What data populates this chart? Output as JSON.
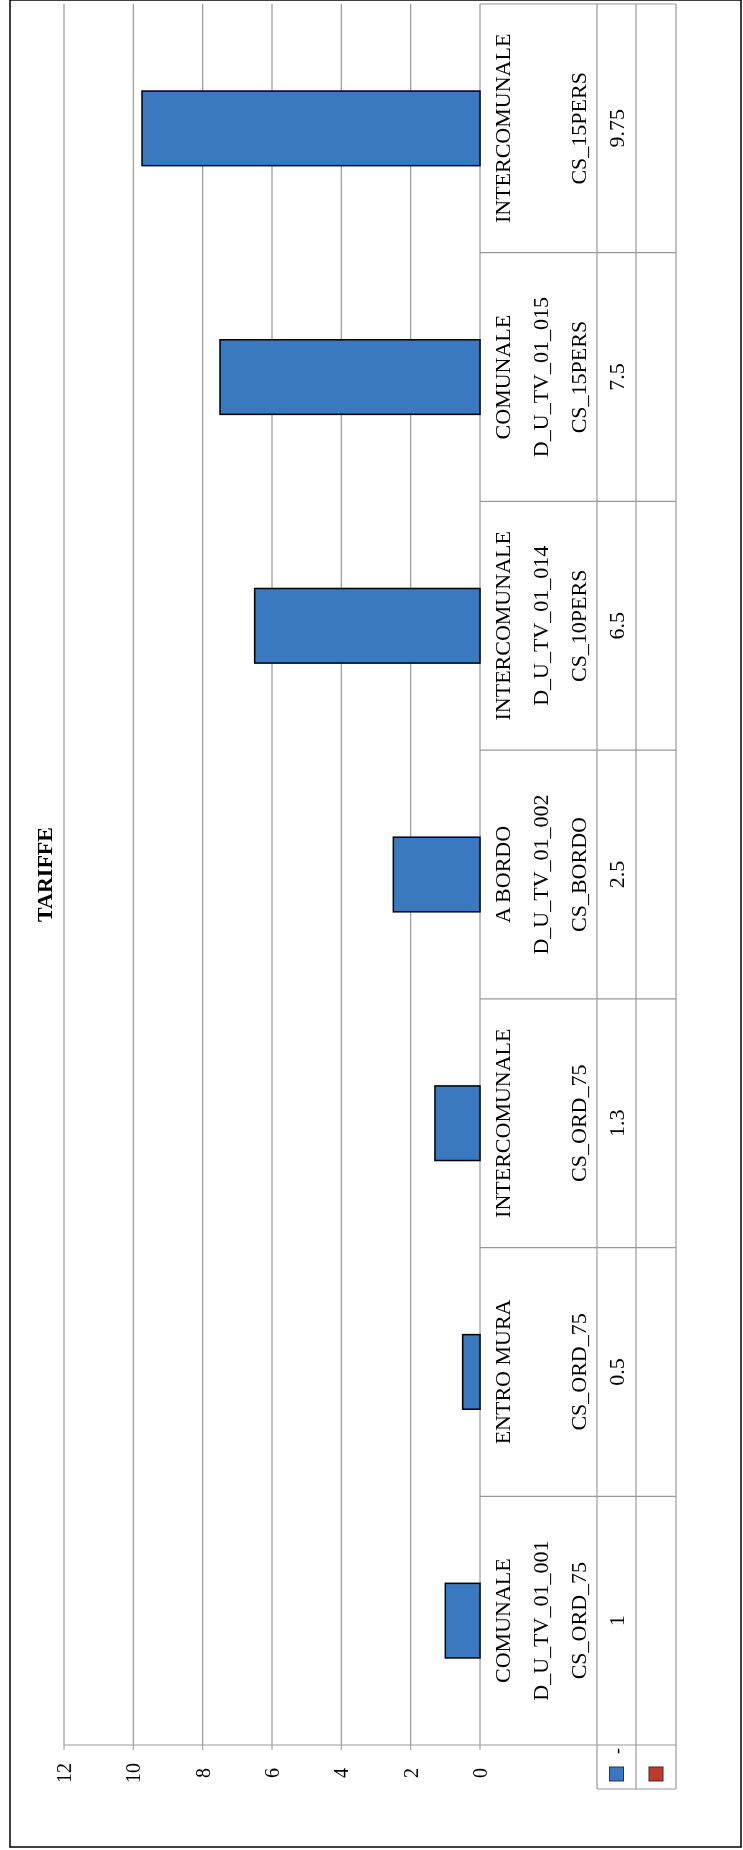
{
  "chart_data": {
    "type": "bar",
    "title": "TARIFFE",
    "orientation": "horizontal",
    "categories": [
      "INTERCOMUNALE\n\nCS_15PERS",
      "COMUNALE\nD_U_TV_01_015\nCS_15PERS",
      "INTERCOMUNALE\nD_U_TV_01_014\nCS_10PERS",
      "A BORDO\nD_U_TV_01_002\nCS_BORDO",
      "INTERCOMUNALE\n\nCS_ORD_75",
      "ENTRO MURA\n\nCS_ORD_75",
      "COMUNALE\nD_U_TV_01_001\nCS_ORD_75"
    ],
    "series": [
      {
        "name": "-",
        "color": "#3a78c0",
        "values": [
          9.75,
          7.5,
          6.5,
          2.5,
          1.3,
          0.5,
          1
        ]
      },
      {
        "color": "#c0392b",
        "values": [
          null,
          null,
          null,
          null,
          null,
          null,
          null
        ]
      }
    ],
    "xlim": [
      12,
      0
    ],
    "xticks": [
      12,
      10,
      8,
      6,
      4,
      2,
      0
    ],
    "grid": "x",
    "legend": "bottom",
    "data_labels": true
  }
}
